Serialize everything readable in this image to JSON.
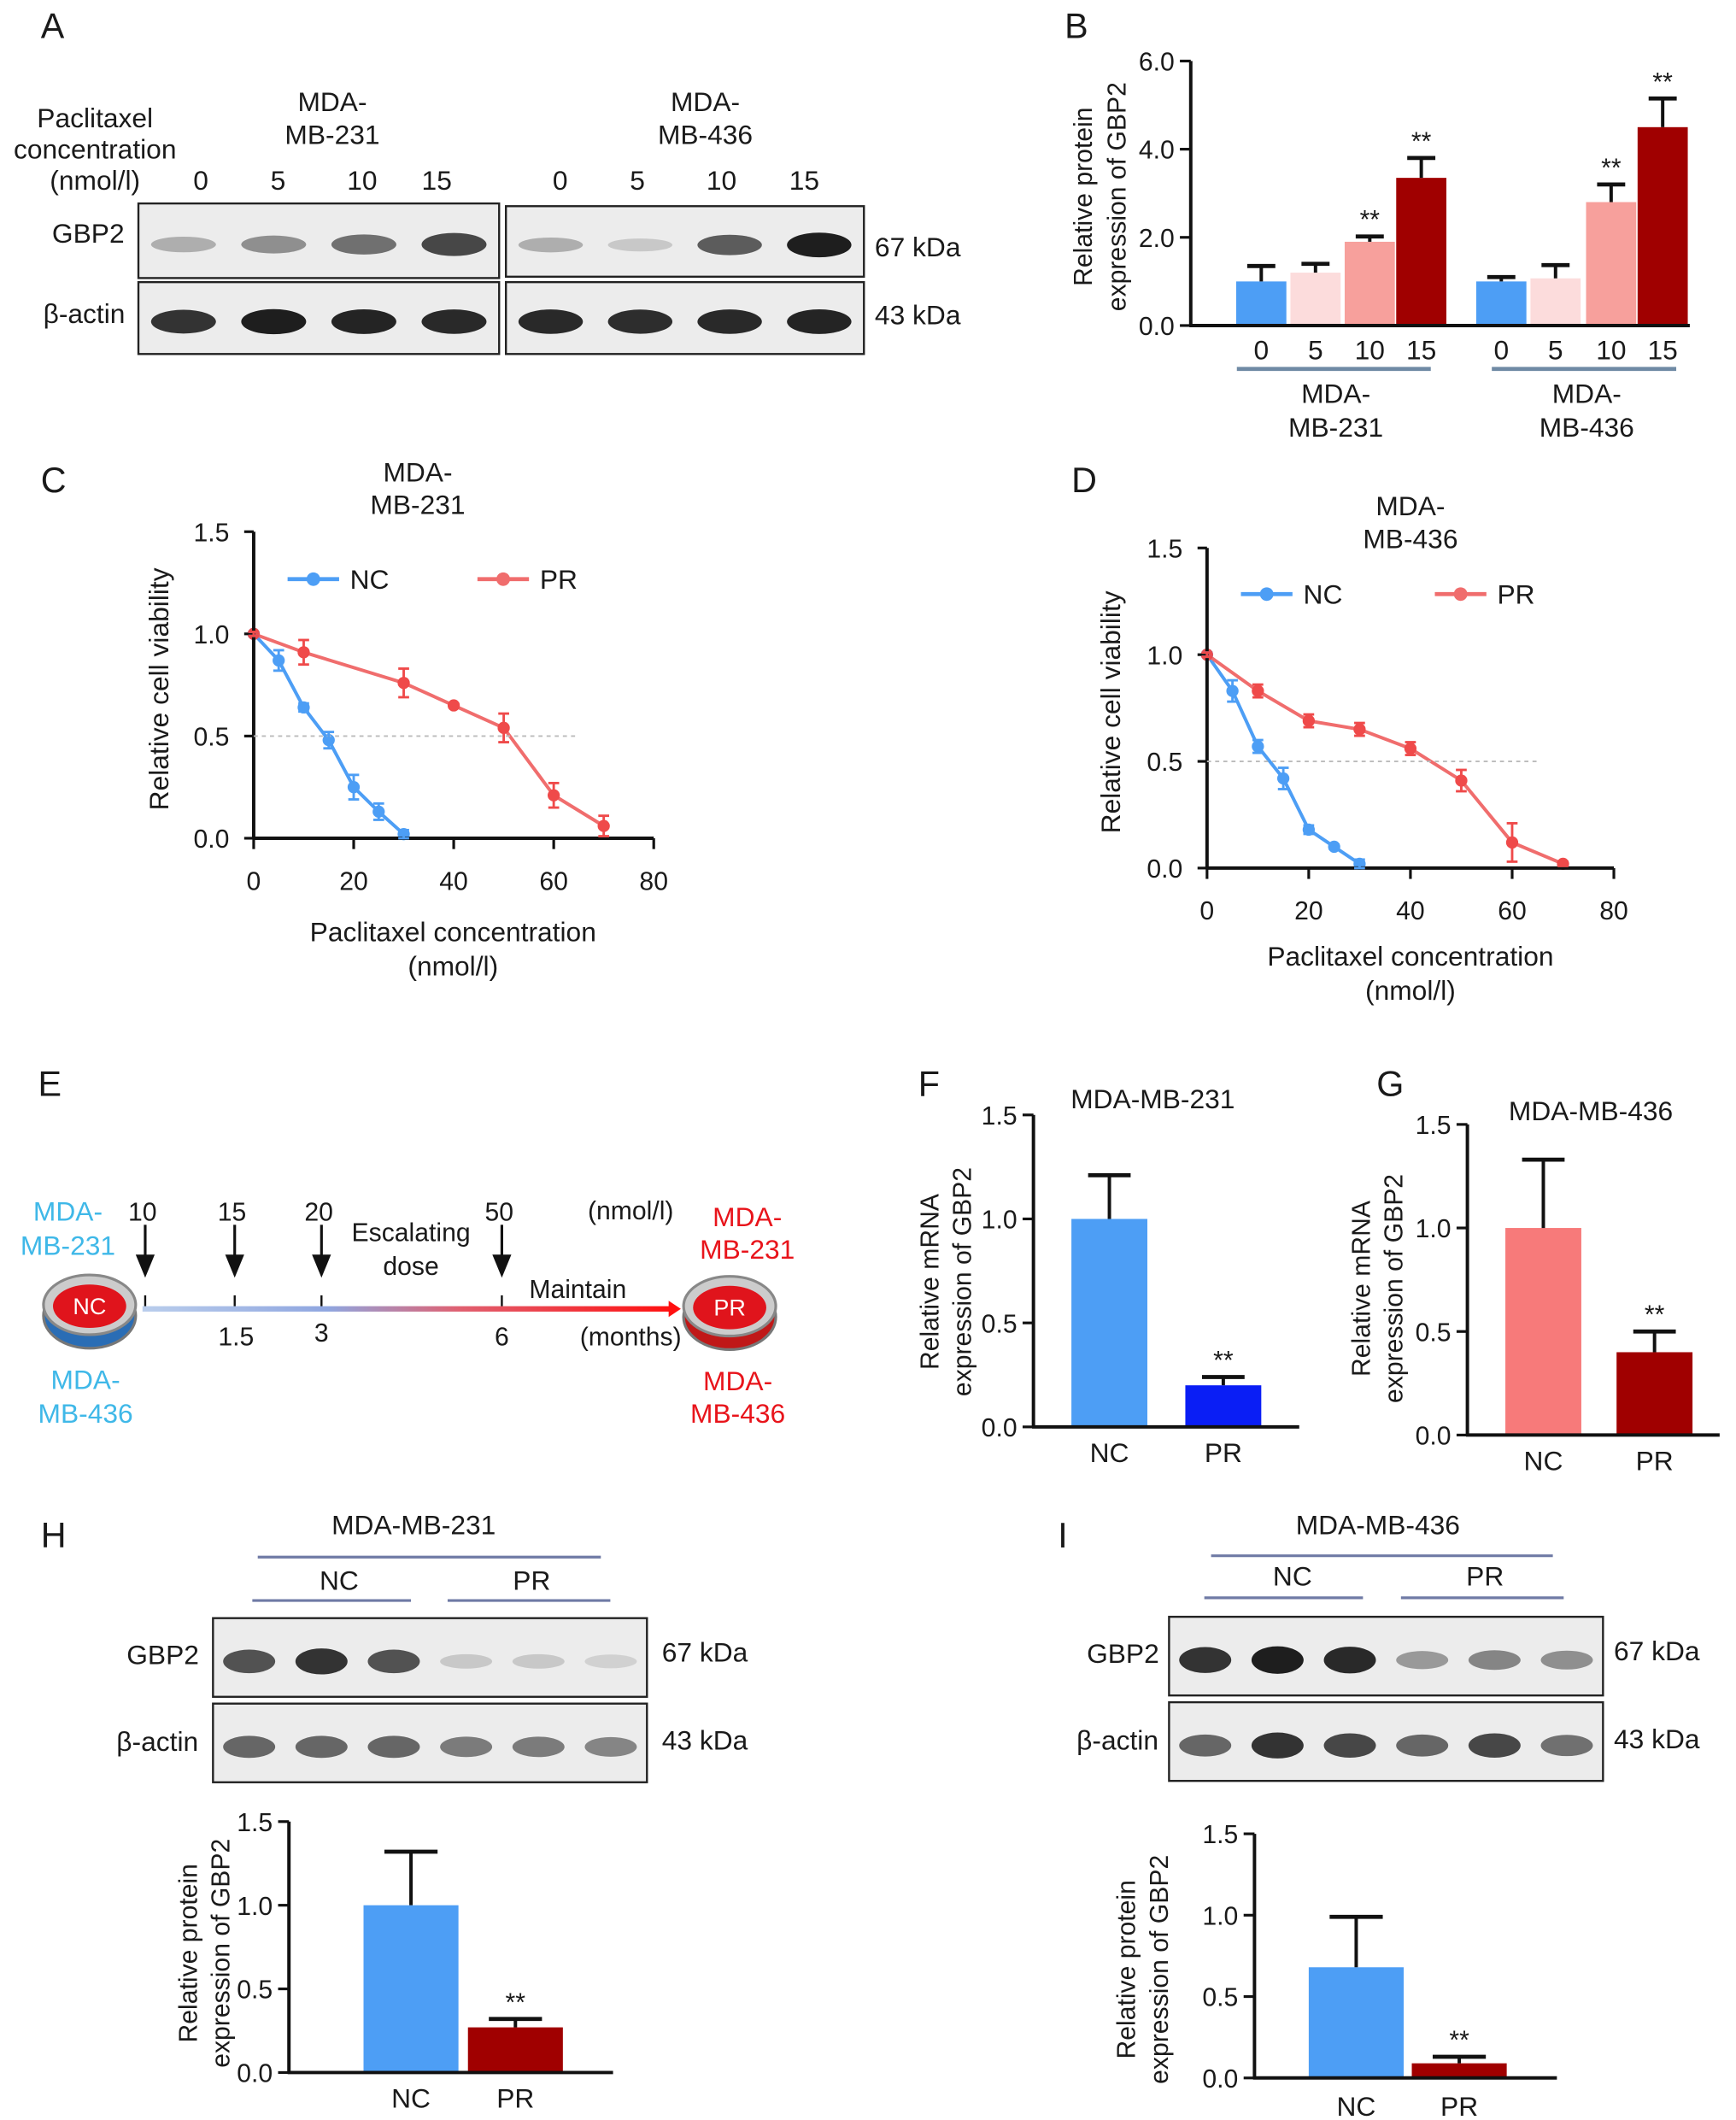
{
  "panel_labels": [
    "A",
    "B",
    "C",
    "D",
    "E",
    "F",
    "G",
    "H",
    "I"
  ],
  "panel_A": {
    "treatment_label": [
      "Paclitaxel",
      "concentration",
      "(nmol/l)"
    ],
    "cell_lines": [
      [
        "MDA-",
        "MB-231"
      ],
      [
        "MDA-",
        "MB-436"
      ]
    ],
    "lanes": [
      "0",
      "5",
      "10",
      "15"
    ],
    "rows": [
      "GBP2",
      "β-actin"
    ],
    "sizes": [
      "67 kDa",
      "43 kDa"
    ]
  },
  "panel_E": {
    "start_line": {
      "top": [
        "MDA-",
        "MB-231"
      ],
      "bottom": [
        "MDA-",
        "MB-436"
      ],
      "dish": "NC",
      "color": "#3fb8e8"
    },
    "end_line": {
      "top": [
        "MDA-",
        "MB-231"
      ],
      "bottom": [
        "MDA-",
        "MB-436"
      ],
      "dish": "PR",
      "color": "#e8141b"
    },
    "doses": [
      "10",
      "15",
      "20",
      "50"
    ],
    "dose_unit": "(nmol/l)",
    "times": [
      "1.5",
      "3",
      "6"
    ],
    "time_unit": "(months)",
    "escalating": [
      "Escalating",
      "dose"
    ],
    "maintain": "Maintain"
  },
  "panel_H": {
    "title": "MDA-MB-231",
    "groups": [
      "NC",
      "PR"
    ],
    "rows": [
      "GBP2",
      "β-actin"
    ],
    "sizes": [
      "67 kDa",
      "43 kDa"
    ]
  },
  "panel_I": {
    "title": "MDA-MB-436",
    "groups": [
      "NC",
      "PR"
    ],
    "rows": [
      "GBP2",
      "β-actin"
    ],
    "sizes": [
      "67 kDa",
      "43 kDa"
    ]
  },
  "chart_data": [
    {
      "panel": "B",
      "type": "bar",
      "ylabel": [
        "Relative protein",
        "expression of GBP2"
      ],
      "ylim": [
        0,
        6
      ],
      "yticks": [
        "0.0",
        "2.0",
        "4.0",
        "6.0"
      ],
      "categories": [
        "0",
        "5",
        "10",
        "15",
        "0",
        "5",
        "10",
        "15"
      ],
      "group_labels": [
        [
          "MDA-",
          "MB-231"
        ],
        [
          "MDA-",
          "MB-436"
        ]
      ],
      "values": [
        1.0,
        1.2,
        1.9,
        3.35,
        1.0,
        1.07,
        2.8,
        4.5
      ],
      "errors": [
        0.35,
        0.2,
        0.12,
        0.45,
        0.1,
        0.3,
        0.4,
        0.65
      ],
      "significance": [
        "",
        "",
        "**",
        "**",
        "",
        "",
        "**",
        "**"
      ],
      "colors": [
        "#4d9ef5",
        "#fcdcdc",
        "#f7a09c",
        "#a00000",
        "#4d9ef5",
        "#fcdcdc",
        "#f7a09c",
        "#a00000"
      ]
    },
    {
      "panel": "C",
      "type": "line",
      "title": [
        "MDA-",
        "MB-231"
      ],
      "xlabel": [
        "Paclitaxel concentration",
        "(nmol/l)"
      ],
      "ylabel": "Relative cell viability",
      "xlim": [
        0,
        80
      ],
      "ylim": [
        0,
        1.5
      ],
      "xticks": [
        "0",
        "20",
        "40",
        "60",
        "80"
      ],
      "yticks": [
        "0.0",
        "0.5",
        "1.0",
        "1.5"
      ],
      "reference_line": 0.5,
      "legend": "top",
      "series": [
        {
          "name": "NC",
          "color": "#4d9ef5",
          "x": [
            0,
            5,
            10,
            15,
            20,
            25,
            30
          ],
          "y": [
            1.0,
            0.87,
            0.64,
            0.48,
            0.25,
            0.13,
            0.02
          ],
          "err": [
            0.01,
            0.05,
            0.02,
            0.04,
            0.06,
            0.04,
            0.02
          ]
        },
        {
          "name": "PR",
          "color": "#f06d6d",
          "x": [
            0,
            10,
            30,
            40,
            50,
            60,
            70
          ],
          "y": [
            1.0,
            0.91,
            0.76,
            0.65,
            0.54,
            0.21,
            0.06
          ],
          "err": [
            0.01,
            0.06,
            0.07,
            0.01,
            0.07,
            0.06,
            0.05
          ]
        }
      ]
    },
    {
      "panel": "D",
      "type": "line",
      "title": [
        "MDA-",
        "MB-436"
      ],
      "xlabel": [
        "Paclitaxel concentration",
        "(nmol/l)"
      ],
      "ylabel": "Relative cell viability",
      "xlim": [
        0,
        80
      ],
      "ylim": [
        0,
        1.5
      ],
      "xticks": [
        "0",
        "20",
        "40",
        "60",
        "80"
      ],
      "yticks": [
        "0.0",
        "0.5",
        "1.0",
        "1.5"
      ],
      "reference_line": 0.5,
      "legend": "top",
      "series": [
        {
          "name": "NC",
          "color": "#4d9ef5",
          "x": [
            0,
            5,
            10,
            15,
            20,
            25,
            30
          ],
          "y": [
            1.0,
            0.83,
            0.57,
            0.42,
            0.18,
            0.1,
            0.02
          ],
          "err": [
            0.01,
            0.05,
            0.03,
            0.05,
            0.02,
            0.01,
            0.02
          ]
        },
        {
          "name": "PR",
          "color": "#f06d6d",
          "x": [
            0,
            10,
            20,
            30,
            40,
            50,
            60,
            70
          ],
          "y": [
            1.0,
            0.83,
            0.69,
            0.65,
            0.56,
            0.41,
            0.12,
            0.02
          ],
          "err": [
            0.01,
            0.03,
            0.03,
            0.03,
            0.03,
            0.05,
            0.09,
            0.01
          ]
        }
      ]
    },
    {
      "panel": "F",
      "type": "bar",
      "title": "MDA-MB-231",
      "ylabel": [
        "Relative mRNA",
        "expression of GBP2"
      ],
      "ylim": [
        0,
        1.5
      ],
      "yticks": [
        "0.0",
        "0.5",
        "1.0",
        "1.5"
      ],
      "categories": [
        "NC",
        "PR"
      ],
      "values": [
        1.0,
        0.2
      ],
      "errors": [
        0.21,
        0.04
      ],
      "significance": [
        "",
        "**"
      ],
      "colors": [
        "#4d9ef5",
        "#0a1ef5"
      ]
    },
    {
      "panel": "G",
      "type": "bar",
      "title": "MDA-MB-436",
      "ylabel": [
        "Relative mRNA",
        "expression of GBP2"
      ],
      "ylim": [
        0,
        1.5
      ],
      "yticks": [
        "0.0",
        "0.5",
        "1.0",
        "1.5"
      ],
      "categories": [
        "NC",
        "PR"
      ],
      "values": [
        1.0,
        0.4
      ],
      "errors": [
        0.33,
        0.1
      ],
      "significance": [
        "",
        "**"
      ],
      "colors": [
        "#f77a7a",
        "#a00000"
      ]
    },
    {
      "panel": "H",
      "type": "bar",
      "ylabel": [
        "Relative protein",
        "expression of GBP2"
      ],
      "ylim": [
        0,
        1.5
      ],
      "yticks": [
        "0.0",
        "0.5",
        "1.0",
        "1.5"
      ],
      "categories": [
        "NC",
        "PR"
      ],
      "values": [
        1.0,
        0.27
      ],
      "errors": [
        0.32,
        0.05
      ],
      "significance": [
        "",
        "**"
      ],
      "colors": [
        "#4d9ef5",
        "#a00000"
      ]
    },
    {
      "panel": "I",
      "type": "bar",
      "ylabel": [
        "Relative protein",
        "expression of GBP2"
      ],
      "ylim": [
        0,
        1.5
      ],
      "yticks": [
        "0.0",
        "0.5",
        "1.0",
        "1.5"
      ],
      "categories": [
        "NC",
        "PR"
      ],
      "values": [
        0.68,
        0.09
      ],
      "errors": [
        0.31,
        0.04
      ],
      "significance": [
        "",
        "**"
      ],
      "colors": [
        "#4d9ef5",
        "#a00000"
      ]
    }
  ]
}
